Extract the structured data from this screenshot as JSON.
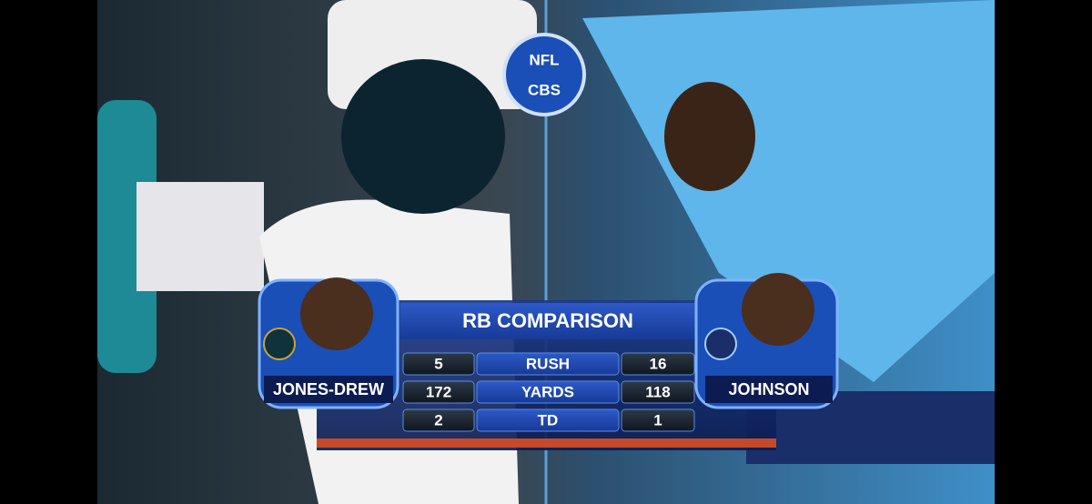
{
  "overlay": {
    "logo": {
      "top": "NFL",
      "bottom": "CBS"
    },
    "title": "RB COMPARISON",
    "left_player": "JONES-DREW",
    "right_player": "JOHNSON",
    "rows": [
      [
        5,
        "RUSH",
        16
      ],
      [
        172,
        "YARDS",
        118
      ],
      [
        2,
        "TD",
        1
      ]
    ]
  }
}
